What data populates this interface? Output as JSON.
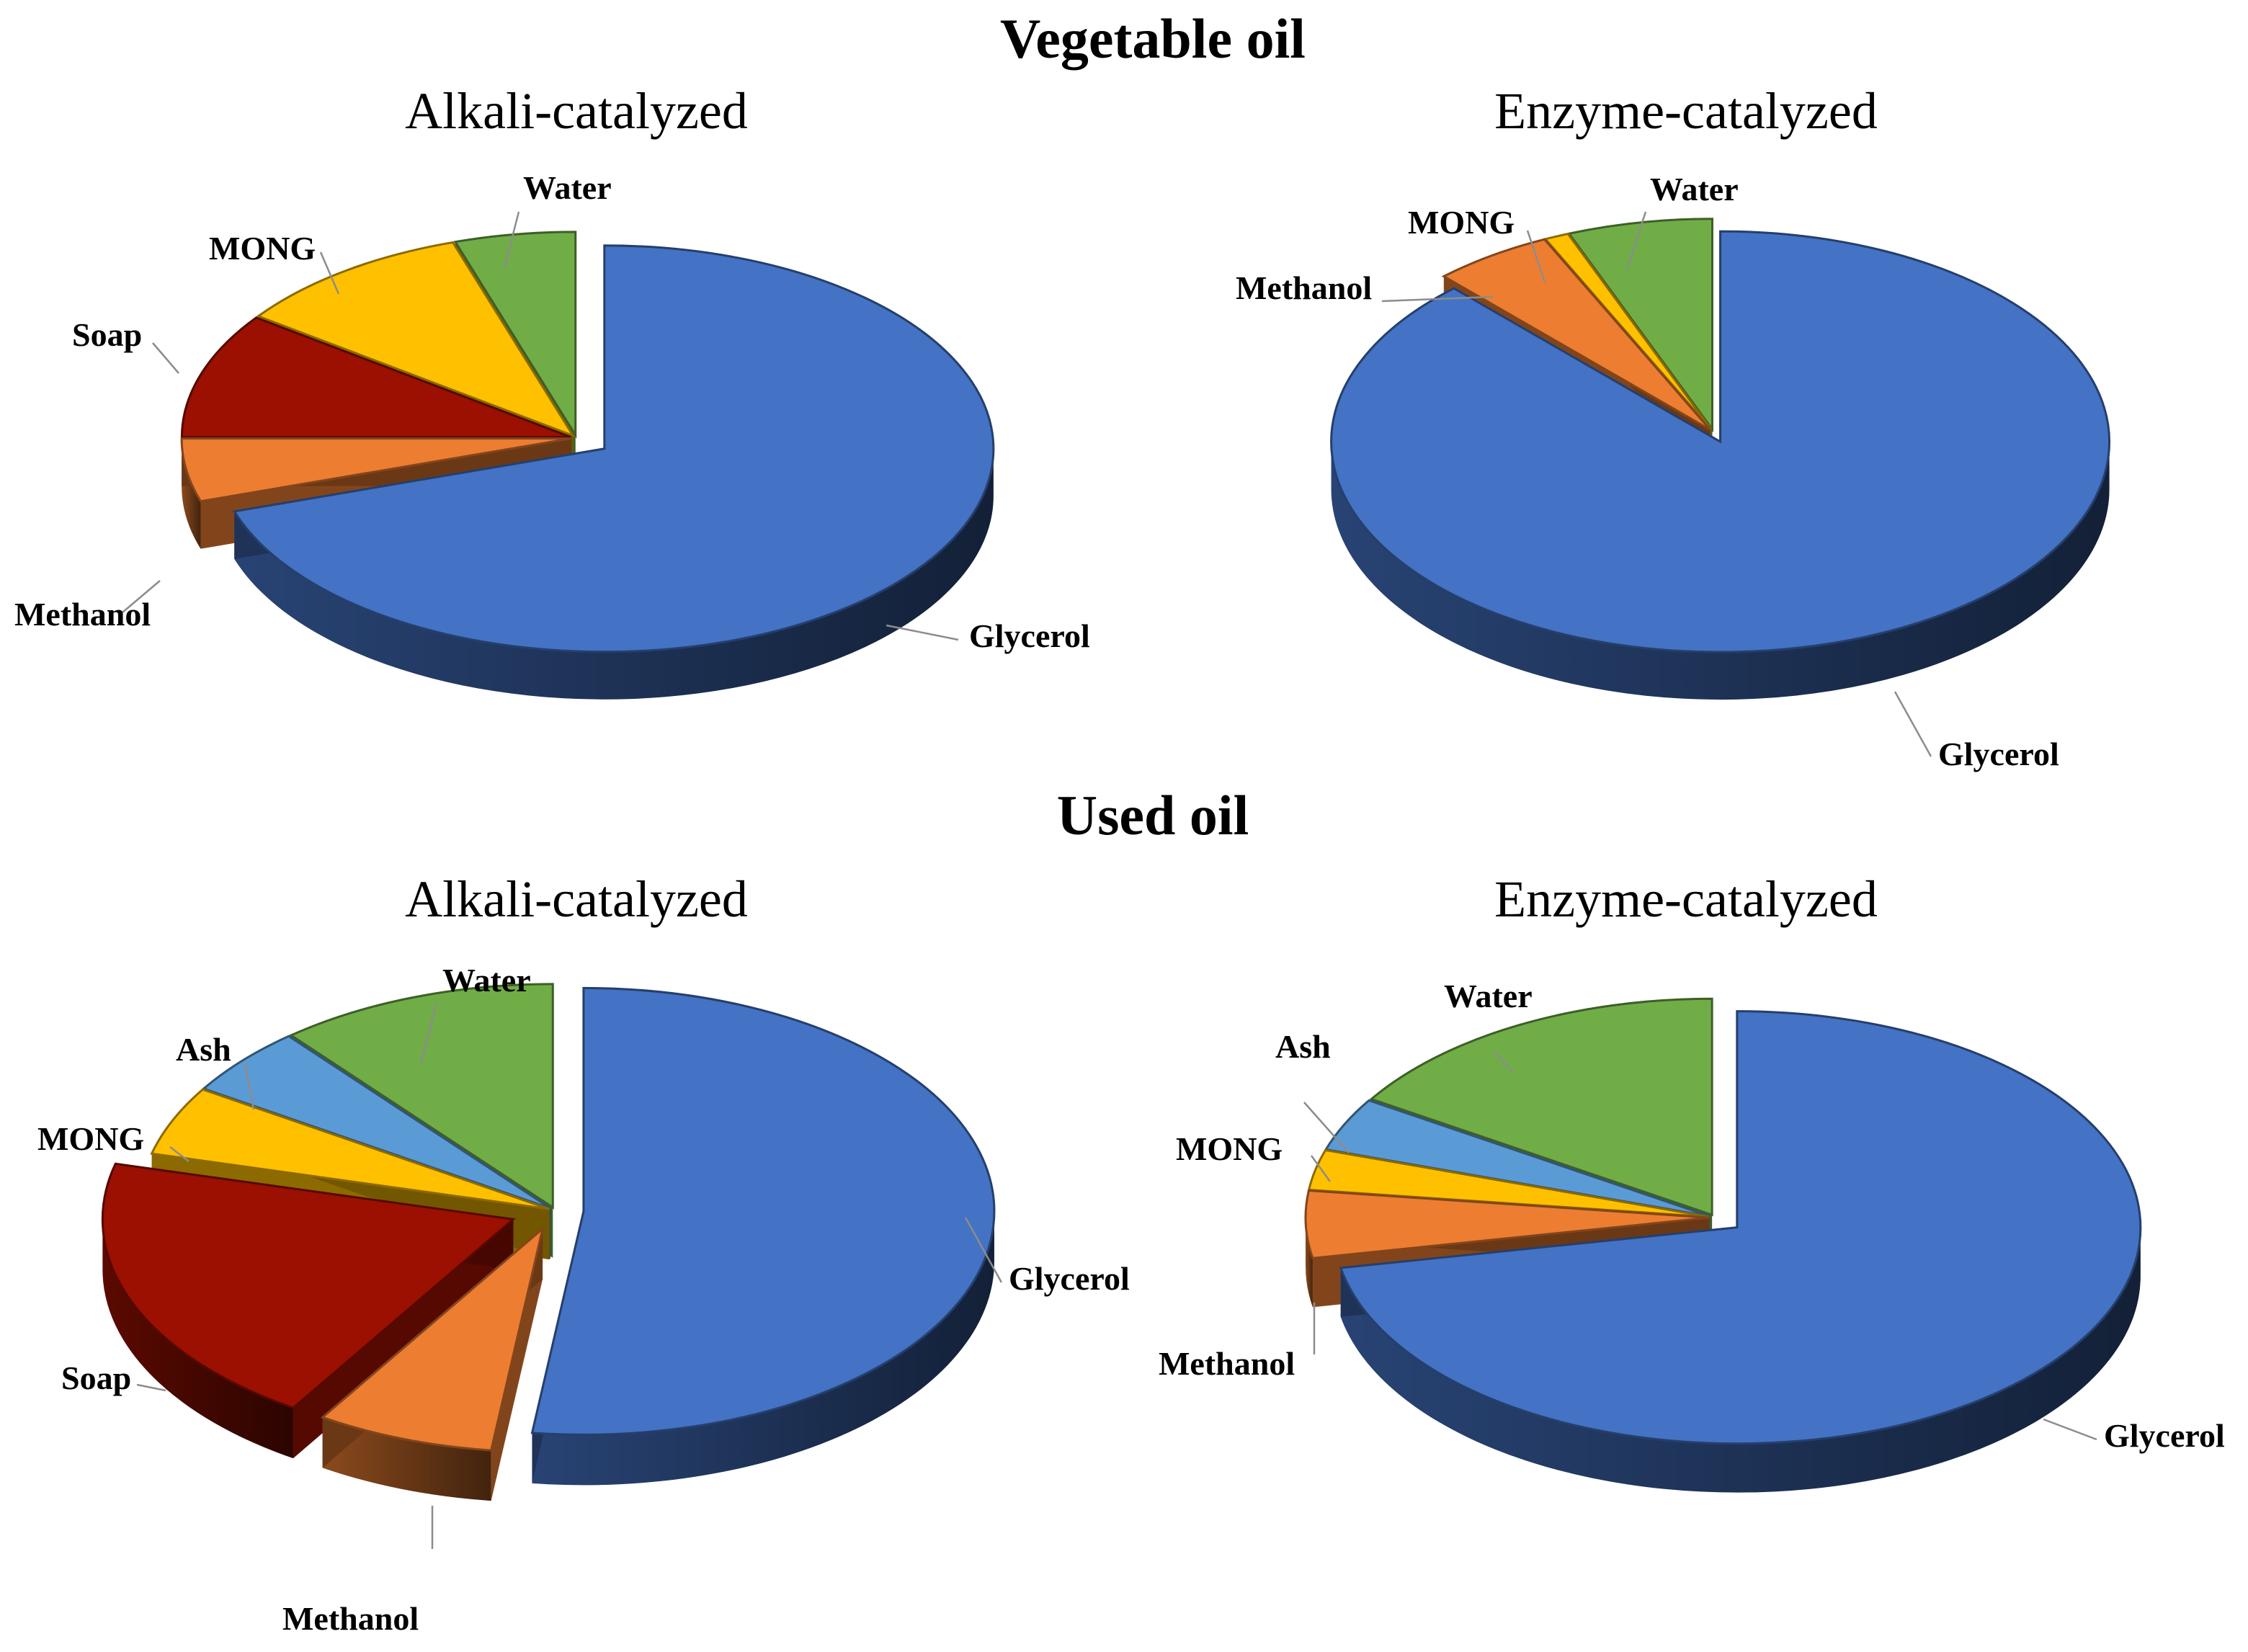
{
  "sections": [
    {
      "title": "Vegetable oil"
    },
    {
      "title": "Used oil"
    }
  ],
  "colors": {
    "Glycerol": "#4472C4",
    "Methanol": "#ED7D31",
    "Soap": "#9B1000",
    "MONG": "#FFC000",
    "Ash": "#5B9BD5",
    "Water": "#70AD47"
  },
  "chart_data": [
    {
      "type": "pie",
      "title": "Alkali-catalyzed",
      "section": "Vegetable oil",
      "categories": [
        "Glycerol",
        "Methanol",
        "Soap",
        "MONG",
        "Water"
      ],
      "values": [
        70,
        5,
        10,
        10,
        5
      ],
      "exploded": [
        "Glycerol"
      ]
    },
    {
      "type": "pie",
      "title": "Enzyme-catalyzed",
      "section": "Vegetable oil",
      "categories": [
        "Glycerol",
        "Methanol",
        "MONG",
        "Water"
      ],
      "values": [
        88,
        5,
        1,
        6
      ],
      "exploded": [
        "Glycerol"
      ]
    },
    {
      "type": "pie",
      "title": "Alkali-catalyzed",
      "section": "Used oil",
      "categories": [
        "Glycerol",
        "Methanol",
        "Soap",
        "MONG",
        "Ash",
        "Water"
      ],
      "values": [
        52,
        7,
        20,
        5,
        5,
        11
      ],
      "exploded": [
        "Glycerol",
        "Methanol",
        "Soap"
      ]
    },
    {
      "type": "pie",
      "title": "Enzyme-catalyzed",
      "section": "Used oil",
      "categories": [
        "Glycerol",
        "Methanol",
        "MONG",
        "Ash",
        "Water"
      ],
      "values": [
        72,
        5,
        3,
        4,
        16
      ],
      "exploded": [
        "Glycerol"
      ]
    }
  ]
}
